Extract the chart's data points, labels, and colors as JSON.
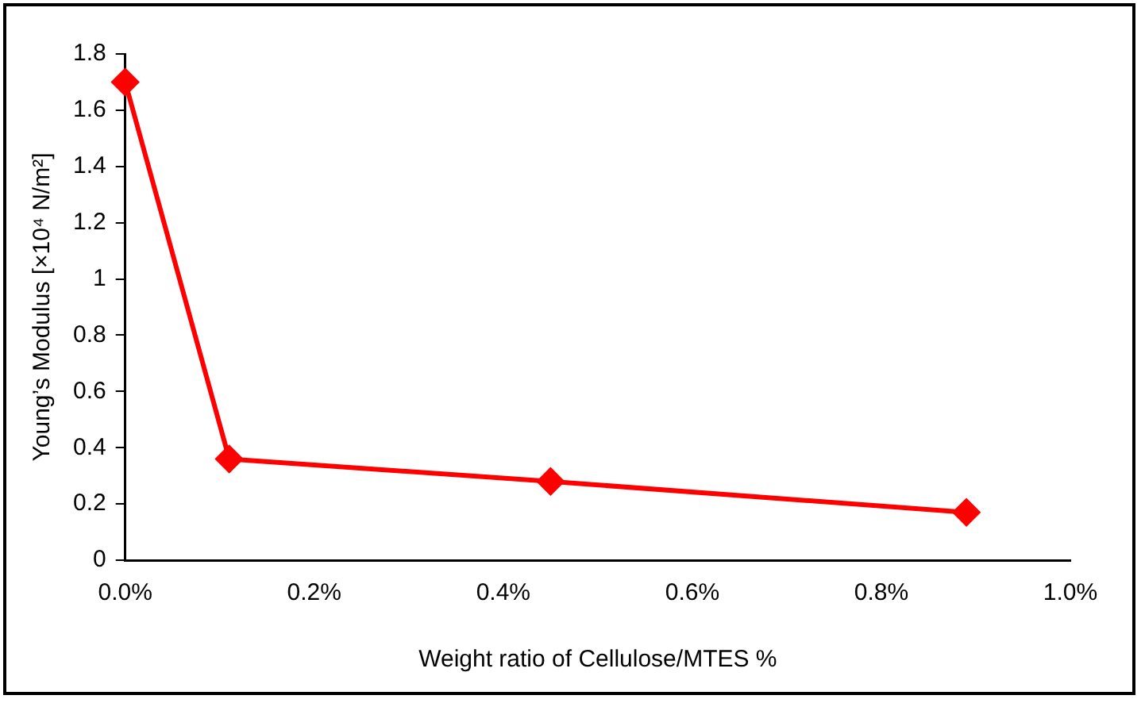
{
  "chart_data": {
    "type": "line",
    "xlabel": "Weight ratio of Cellulose/MTES %",
    "ylabel": "Young’s Modulus [×10⁴ N/m²]",
    "x": [
      0,
      0.11,
      0.45,
      0.89
    ],
    "series": [
      {
        "color": "#ff0000",
        "values": [
          1.7,
          0.36,
          0.28,
          0.17
        ]
      }
    ],
    "xlim": [
      0,
      1
    ],
    "xticks": [
      {
        "value": 0,
        "label": "0.0%"
      },
      {
        "value": 0.2,
        "label": "0.2%"
      },
      {
        "value": 0.4,
        "label": "0.4%"
      },
      {
        "value": 0.6,
        "label": "0.6%"
      },
      {
        "value": 0.8,
        "label": "0.8%"
      },
      {
        "value": 1,
        "label": "1.0%"
      }
    ],
    "ylim": [
      0,
      1.8
    ],
    "yticks": [
      0,
      0.2,
      0.4,
      0.6,
      0.8,
      1,
      1.2,
      1.4,
      1.6,
      1.8
    ],
    "grid": false,
    "legend": false,
    "marker": "diamond",
    "line_style": "solid"
  }
}
